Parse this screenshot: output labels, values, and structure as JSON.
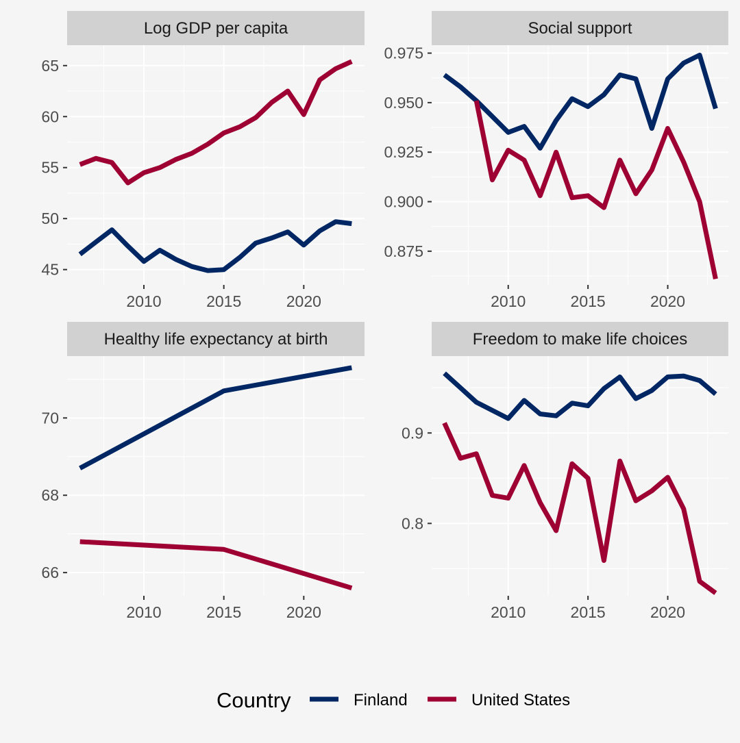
{
  "chart_data": [
    {
      "type": "line",
      "title": "Log GDP per capita",
      "xlim": [
        2005.2,
        2023.8
      ],
      "ylim": [
        43.5,
        67.0
      ],
      "x_ticks": [
        2010,
        2015,
        2020
      ],
      "y_ticks": [
        45,
        50,
        55,
        60,
        65
      ],
      "y_tick_labels": [
        "45",
        "50",
        "55",
        "60",
        "65"
      ],
      "x": [
        2006,
        2007,
        2008,
        2009,
        2010,
        2011,
        2012,
        2013,
        2014,
        2015,
        2016,
        2017,
        2018,
        2019,
        2020,
        2021,
        2022,
        2023
      ],
      "series": [
        {
          "name": "Finland",
          "values": [
            46.5,
            47.7,
            48.9,
            47.3,
            45.8,
            46.9,
            46.0,
            45.3,
            44.9,
            45.0,
            46.2,
            47.6,
            48.1,
            48.7,
            47.4,
            48.8,
            49.7,
            49.5
          ]
        },
        {
          "name": "United States",
          "values": [
            55.3,
            55.9,
            55.5,
            53.5,
            54.5,
            55.0,
            55.8,
            56.4,
            57.3,
            58.4,
            59.0,
            59.9,
            61.4,
            62.5,
            60.2,
            63.6,
            64.7,
            65.4
          ]
        }
      ]
    },
    {
      "type": "line",
      "title": "Social support",
      "xlim": [
        2005.2,
        2023.8
      ],
      "ylim": [
        0.858,
        0.979
      ],
      "x_ticks": [
        2010,
        2015,
        2020
      ],
      "y_ticks": [
        0.875,
        0.9,
        0.925,
        0.95,
        0.975
      ],
      "y_tick_labels": [
        "0.875",
        "0.900",
        "0.925",
        "0.950",
        "0.975"
      ],
      "x": [
        2006,
        2007,
        2008,
        2009,
        2010,
        2011,
        2012,
        2013,
        2014,
        2015,
        2016,
        2017,
        2018,
        2019,
        2020,
        2021,
        2022,
        2023
      ],
      "series": [
        {
          "name": "Finland",
          "values": [
            0.964,
            0.958,
            0.951,
            0.943,
            0.935,
            0.938,
            0.927,
            0.941,
            0.952,
            0.948,
            0.954,
            0.964,
            0.962,
            0.937,
            0.962,
            0.97,
            0.974,
            0.947
          ]
        },
        {
          "name": "United States",
          "values": [
            null,
            null,
            0.951,
            0.911,
            0.926,
            0.921,
            0.903,
            0.925,
            0.902,
            0.903,
            0.897,
            0.921,
            0.904,
            0.916,
            0.937,
            0.92,
            0.9,
            0.861
          ]
        }
      ]
    },
    {
      "type": "line",
      "title": "Healthy life expectancy at birth",
      "xlim": [
        2005.2,
        2023.8
      ],
      "ylim": [
        65.4,
        71.6
      ],
      "x_ticks": [
        2010,
        2015,
        2020
      ],
      "y_ticks": [
        66,
        68,
        70
      ],
      "y_tick_labels": [
        "66",
        "68",
        "70"
      ],
      "x": [
        2006,
        2015,
        2023
      ],
      "series": [
        {
          "name": "Finland",
          "values": [
            68.7,
            70.7,
            71.3
          ]
        },
        {
          "name": "United States",
          "values": [
            66.8,
            66.6,
            65.6
          ]
        }
      ]
    },
    {
      "type": "line",
      "title": "Freedom to make life choices",
      "xlim": [
        2005.2,
        2023.8
      ],
      "ylim": [
        0.72,
        0.985
      ],
      "x_ticks": [
        2010,
        2015,
        2020
      ],
      "y_ticks": [
        0.8,
        0.9
      ],
      "y_tick_labels": [
        "0.8",
        "0.9"
      ],
      "x": [
        2006,
        2007,
        2008,
        2009,
        2010,
        2011,
        2012,
        2013,
        2014,
        2015,
        2016,
        2017,
        2018,
        2019,
        2020,
        2021,
        2022,
        2023
      ],
      "series": [
        {
          "name": "Finland",
          "values": [
            0.966,
            0.95,
            0.934,
            0.925,
            0.916,
            0.936,
            0.921,
            0.919,
            0.933,
            0.93,
            0.949,
            0.962,
            0.938,
            0.947,
            0.962,
            0.963,
            0.958,
            0.943
          ]
        },
        {
          "name": "United States",
          "values": [
            0.911,
            0.872,
            0.877,
            0.831,
            0.828,
            0.864,
            0.823,
            0.792,
            0.866,
            0.85,
            0.759,
            0.869,
            0.825,
            0.836,
            0.851,
            0.816,
            0.736,
            0.723
          ]
        }
      ]
    }
  ],
  "legend": {
    "title": "Country",
    "position": "bottom",
    "items": [
      {
        "label": "Finland",
        "color": "#002664"
      },
      {
        "label": "United States",
        "color": "#9e0033"
      }
    ]
  },
  "colors": {
    "Finland": "#002664",
    "United States": "#9e0033",
    "background": "#f5f5f5",
    "strip": "#d1d1d1",
    "grid": "#ffffff"
  }
}
